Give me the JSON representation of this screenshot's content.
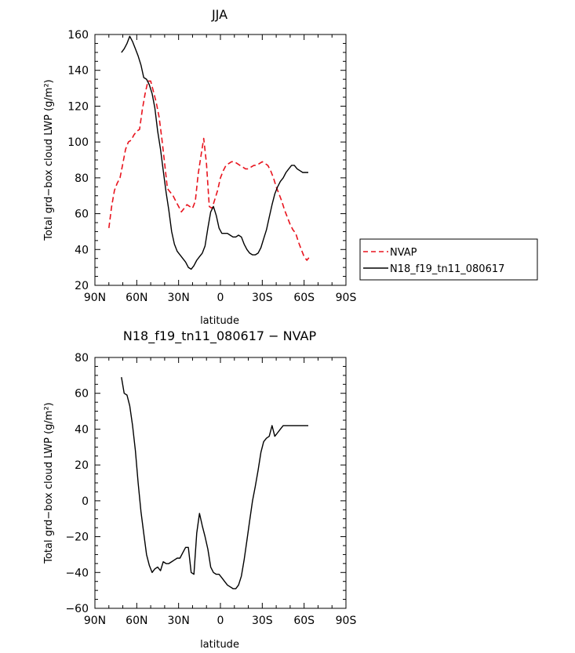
{
  "chart_data": [
    {
      "type": "line",
      "title": "JJA",
      "xlabel": "latitude",
      "ylabel": "Total grd−box cloud LWP (g/m²)",
      "xlim": [
        90,
        -90
      ],
      "ylim": [
        20,
        160
      ],
      "x_ticks": [
        90,
        60,
        30,
        0,
        -30,
        -60,
        -90
      ],
      "x_tick_labels": [
        "90N",
        "60N",
        "30N",
        "0",
        "30S",
        "60S",
        "90S"
      ],
      "y_ticks": [
        20,
        40,
        60,
        80,
        100,
        120,
        140,
        160
      ],
      "y_tick_labels": [
        "20",
        "40",
        "60",
        "80",
        "100",
        "120",
        "140",
        "160"
      ],
      "legend": {
        "position": "right",
        "entries": [
          "NVAP",
          "N18_f19_tn11_080617"
        ]
      },
      "series": [
        {
          "name": "NVAP",
          "color": "#e8141e",
          "dash": "dashed",
          "x": [
            80,
            78,
            76,
            74,
            72,
            70,
            68,
            66,
            64,
            62,
            60,
            58,
            56,
            54,
            52,
            50,
            48,
            46,
            44,
            42,
            40,
            38,
            36,
            34,
            32,
            30,
            28,
            26,
            24,
            22,
            20,
            18,
            16,
            14,
            12,
            10,
            8,
            6,
            4,
            2,
            0,
            -2,
            -4,
            -6,
            -8,
            -10,
            -12,
            -14,
            -16,
            -18,
            -20,
            -22,
            -24,
            -26,
            -28,
            -30,
            -32,
            -34,
            -36,
            -38,
            -40,
            -42,
            -44,
            -46,
            -48,
            -50,
            -52,
            -54,
            -56,
            -58,
            -60,
            -62,
            -64
          ],
          "y": [
            52,
            64,
            73,
            77,
            80,
            88,
            96,
            100,
            101,
            104,
            106,
            107,
            118,
            127,
            134,
            134,
            128,
            122,
            114,
            102,
            88,
            74,
            72,
            70,
            67,
            64,
            61,
            63,
            65,
            64,
            63,
            67,
            82,
            92,
            102,
            88,
            64,
            63,
            68,
            73,
            80,
            84,
            87,
            88,
            89,
            89,
            88,
            87,
            86,
            85,
            85,
            86,
            87,
            87,
            88,
            89,
            88,
            87,
            84,
            80,
            75,
            71,
            67,
            62,
            58,
            54,
            51,
            49,
            44,
            40,
            36,
            34,
            36
          ]
        },
        {
          "name": "N18_f19_tn11_080617",
          "color": "#000000",
          "dash": "solid",
          "x": [
            71,
            69,
            67,
            65,
            63,
            61,
            59,
            57,
            55,
            53,
            51,
            49,
            47,
            45,
            43,
            41,
            39,
            37,
            35,
            33,
            31,
            29,
            27,
            25,
            23,
            21,
            19,
            17,
            15,
            13,
            11,
            9,
            7,
            5,
            3,
            1,
            -1,
            -3,
            -5,
            -7,
            -9,
            -11,
            -13,
            -15,
            -17,
            -19,
            -21,
            -23,
            -25,
            -27,
            -29,
            -31,
            -33,
            -35,
            -37,
            -39,
            -41,
            -43,
            -45,
            -47,
            -49,
            -51,
            -53,
            -55,
            -57,
            -59,
            -61,
            -63
          ],
          "y": [
            150,
            152,
            155,
            159,
            156,
            152,
            148,
            143,
            136,
            135,
            132,
            127,
            119,
            106,
            96,
            84,
            72,
            62,
            50,
            43,
            39,
            37,
            35,
            33,
            30,
            29,
            31,
            34,
            36,
            38,
            42,
            52,
            61,
            64,
            59,
            52,
            49,
            49,
            49,
            48,
            47,
            47,
            48,
            47,
            43,
            40,
            38,
            37,
            37,
            38,
            41,
            46,
            51,
            58,
            65,
            71,
            75,
            78,
            80,
            83,
            85,
            87,
            87,
            85,
            84,
            83,
            83,
            83
          ]
        }
      ]
    },
    {
      "type": "line",
      "title": "N18_f19_tn11_080617 − NVAP",
      "xlabel": "latitude",
      "ylabel": "Total grd−box cloud LWP (g/m²)",
      "xlim": [
        90,
        -90
      ],
      "ylim": [
        -60,
        80
      ],
      "x_ticks": [
        90,
        60,
        30,
        0,
        -30,
        -60,
        -90
      ],
      "x_tick_labels": [
        "90N",
        "60N",
        "30N",
        "0",
        "30S",
        "60S",
        "90S"
      ],
      "y_ticks": [
        -60,
        -40,
        -20,
        0,
        20,
        40,
        60,
        80
      ],
      "y_tick_labels": [
        "−60",
        "−40",
        "−20",
        "0",
        "20",
        "40",
        "60",
        "80"
      ],
      "series": [
        {
          "color": "#000000",
          "dash": "solid",
          "x": [
            71,
            69,
            67,
            65,
            63,
            61,
            59,
            57,
            55,
            53,
            51,
            49,
            47,
            45,
            43,
            41,
            39,
            37,
            35,
            33,
            31,
            29,
            27,
            25,
            23,
            21,
            19,
            17,
            15,
            13,
            11,
            9,
            7,
            5,
            3,
            1,
            -1,
            -3,
            -5,
            -7,
            -9,
            -11,
            -13,
            -15,
            -17,
            -19,
            -21,
            -23,
            -25,
            -27,
            -29,
            -31,
            -33,
            -35,
            -37,
            -39,
            -41,
            -43,
            -45,
            -47,
            -49,
            -51,
            -53,
            -55,
            -57,
            -59,
            -61,
            -63
          ],
          "y": [
            69,
            60,
            59,
            53,
            42,
            28,
            10,
            -6,
            -18,
            -30,
            -36,
            -40,
            -38,
            -37,
            -39,
            -34,
            -35,
            -35,
            -34,
            -33,
            -32,
            -32,
            -29,
            -26,
            -26,
            -40,
            -41,
            -18,
            -7,
            -14,
            -20,
            -27,
            -37,
            -40,
            -41,
            -41,
            -43,
            -45,
            -47,
            -48,
            -49,
            -49,
            -47,
            -42,
            -33,
            -22,
            -11,
            0,
            8,
            17,
            27,
            33,
            35,
            36,
            42,
            36,
            38,
            40,
            42,
            42,
            42,
            42,
            42,
            42,
            42,
            42,
            42,
            42
          ]
        }
      ]
    }
  ]
}
